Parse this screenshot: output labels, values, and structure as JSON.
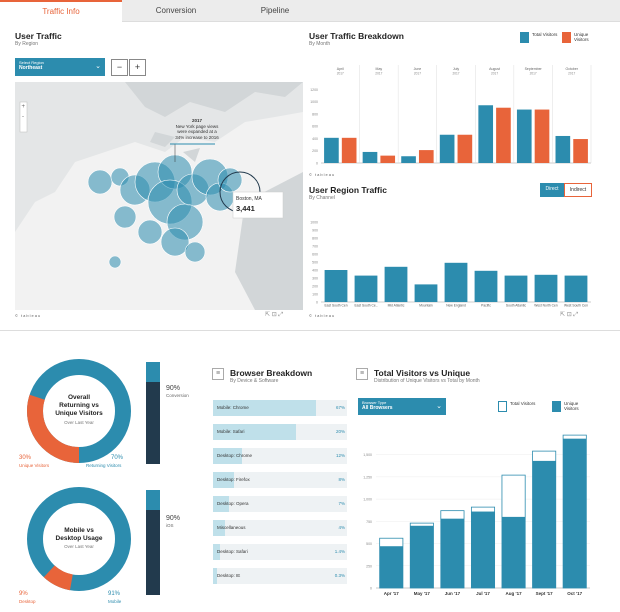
{
  "tabs": [
    {
      "label": "Traffic Info",
      "active": true
    },
    {
      "label": "Conversion",
      "active": false
    },
    {
      "label": "Pipeline",
      "active": false
    }
  ],
  "colors": {
    "teal": "#2c8cae",
    "orange": "#e8643a",
    "navy": "#223a4d",
    "light": "#bfe0ea"
  },
  "map": {
    "title": "User Traffic",
    "subtitle": "By Region",
    "select_label": "Select Region",
    "select_value": "Northeast",
    "zoom_out": "−",
    "zoom_in": "+",
    "annotation_lines": [
      "2017",
      "New York page views",
      "were expanded at a",
      "34% increase to 2016"
    ],
    "tooltip_city": "Boston, MA",
    "tooltip_value": "3,441",
    "footer": "© tableau"
  },
  "breakdown": {
    "title": "User Traffic Breakdown",
    "subtitle": "By Month",
    "legend_total": "Total Visitors",
    "legend_unique": "Unique Visitors",
    "footer": "© tableau"
  },
  "region_traffic": {
    "title": "User Region Traffic",
    "subtitle": "By Channel",
    "toggle_direct": "Direct",
    "toggle_indirect": "Indirect",
    "footer": "© tableau"
  },
  "returning": {
    "title_lines": [
      "Overall",
      "Returning vs",
      "Unique Visitors"
    ],
    "sub": "Over Last Year",
    "left_pct": "30%",
    "left_label": "Unique Visitors",
    "right_pct": "70%",
    "right_label": "Returning Visitors",
    "side_pct": "90%",
    "side_label": "Conversion"
  },
  "mobile": {
    "title_lines": [
      "Mobile vs",
      "Desktop Usage"
    ],
    "sub": "Over Last Year",
    "left_pct": "9%",
    "left_label": "Desktop",
    "right_pct": "91%",
    "right_label": "Mobile",
    "side_pct": "90%",
    "side_label": "iOS"
  },
  "browser": {
    "title": "Browser Breakdown",
    "subtitle": "By Device & Software",
    "items": [
      {
        "label": "Mobile: Chrome",
        "value": "67%",
        "pct": 0.77
      },
      {
        "label": "Mobile: Safari",
        "value": "20%",
        "pct": 0.62
      },
      {
        "label": "Desktop: Chrome",
        "value": "12%",
        "pct": 0.22
      },
      {
        "label": "Desktop: Firefox",
        "value": "8%",
        "pct": 0.16
      },
      {
        "label": "Desktop: Opera",
        "value": "7%",
        "pct": 0.12
      },
      {
        "label": "Miscellaneous",
        "value": "4%",
        "pct": 0.09
      },
      {
        "label": "Desktop: Safari",
        "value": "1.4%",
        "pct": 0.05
      },
      {
        "label": "Desktop: IE",
        "value": "0.3%",
        "pct": 0.03
      }
    ]
  },
  "total_visitors": {
    "title": "Total Visitors vs Unique",
    "subtitle": "Distribution of Unique Visitors vs Total by Month",
    "select_label": "Browser Type",
    "select_value": "All Browsers",
    "legend_total": "Total Visitors",
    "legend_unique": "Unique Visitors"
  },
  "chart_data": [
    {
      "type": "bar",
      "title": "User Traffic Breakdown",
      "categories": [
        "April 2017",
        "May 2017",
        "June 2017",
        "July 2017",
        "August 2017",
        "September 2017",
        "October 2017"
      ],
      "series": [
        {
          "name": "Total Visitors",
          "values": [
            410,
            180,
            110,
            460,
            940,
            870,
            440
          ]
        },
        {
          "name": "Unique Visitors",
          "values": [
            410,
            120,
            210,
            460,
            900,
            870,
            390
          ]
        }
      ],
      "ylim": [
        0,
        1400
      ],
      "yticks": [
        0,
        200,
        400,
        600,
        800,
        1000,
        1200
      ]
    },
    {
      "type": "bar",
      "title": "User Region Traffic",
      "categories": [
        "East South Cen",
        "East South Ce..",
        "Mid Atlantic",
        "Mountain",
        "New England",
        "Pacific",
        "South Atlantic",
        "West North Cen",
        "West South Cen"
      ],
      "values": [
        400,
        330,
        440,
        220,
        490,
        390,
        330,
        340,
        330
      ],
      "ylim": [
        0,
        1000
      ],
      "yticks": [
        0,
        100,
        200,
        300,
        400,
        500,
        600,
        700,
        800,
        900,
        1000
      ]
    },
    {
      "type": "bar",
      "title": "Total Visitors vs Unique",
      "categories": [
        "Apr '17",
        "May '17",
        "Jun '17",
        "Jul '17",
        "Aug '17",
        "Sept '17",
        "Oct '17"
      ],
      "series": [
        {
          "name": "Total Visitors",
          "values": [
            560,
            730,
            870,
            910,
            1270,
            1540,
            1720
          ]
        },
        {
          "name": "Unique Visitors",
          "values": [
            470,
            700,
            780,
            860,
            800,
            1430,
            1680
          ]
        }
      ],
      "ylim": [
        0,
        1800
      ],
      "yticks": [
        0,
        250,
        500,
        750,
        1000,
        1250,
        1500
      ]
    }
  ]
}
